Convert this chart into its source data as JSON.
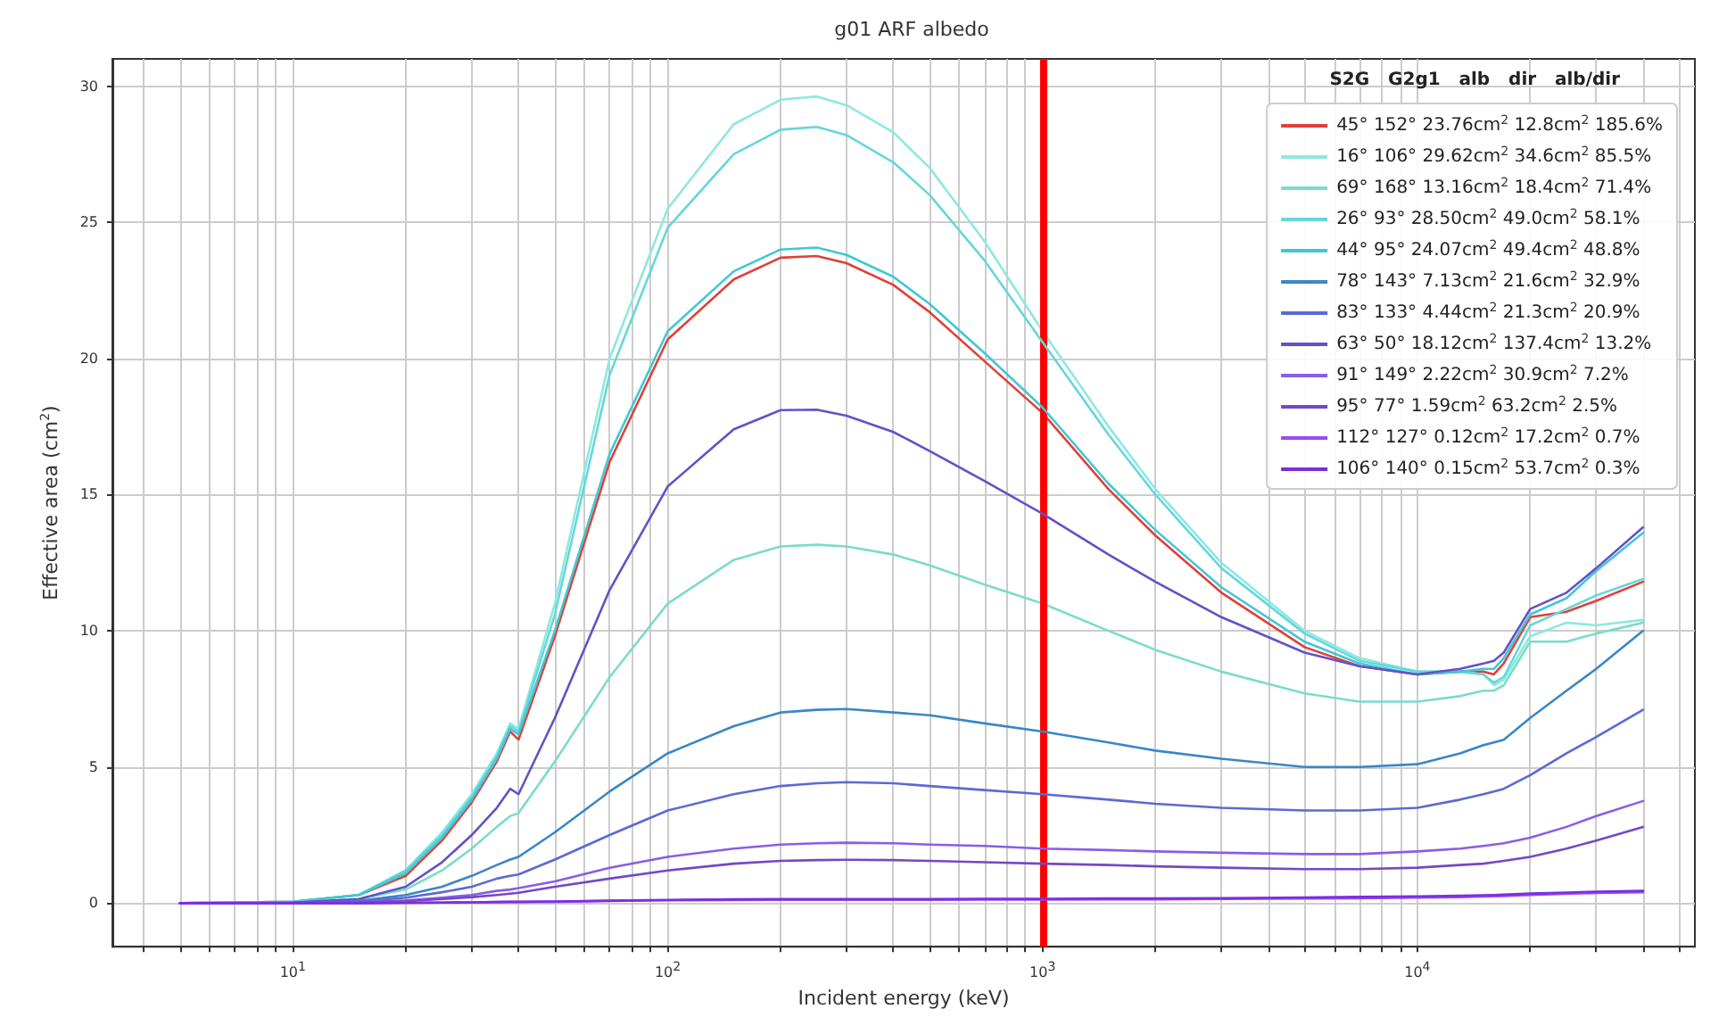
{
  "chart_data": {
    "type": "line",
    "title": "g01 ARF albedo",
    "xlabel": "Incident energy (keV)",
    "ylabel": "Effective area (cm$^{2}$)",
    "legend_title": "S2G   G2g1   alb   dir   alb/dir",
    "legend": "top right",
    "grid": true,
    "marker": "none",
    "line_style": "solid",
    "log": "x",
    "xlim": [
      3.3,
      55000
    ],
    "ylim": [
      -1.6,
      31
    ],
    "xticks": [
      {
        "value": 4,
        "label": null
      },
      {
        "value": 5,
        "label": null
      },
      {
        "value": 6,
        "label": null
      },
      {
        "value": 7,
        "label": null
      },
      {
        "value": 8,
        "label": null
      },
      {
        "value": 9,
        "label": null
      },
      {
        "value": 10,
        "label": "10$^{1}$"
      },
      {
        "value": 20,
        "label": null
      },
      {
        "value": 30,
        "label": null
      },
      {
        "value": 40,
        "label": null
      },
      {
        "value": 50,
        "label": null
      },
      {
        "value": 60,
        "label": null
      },
      {
        "value": 70,
        "label": null
      },
      {
        "value": 80,
        "label": null
      },
      {
        "value": 90,
        "label": null
      },
      {
        "value": 100,
        "label": "10$^{2}$"
      },
      {
        "value": 200,
        "label": null
      },
      {
        "value": 300,
        "label": null
      },
      {
        "value": 400,
        "label": null
      },
      {
        "value": 500,
        "label": null
      },
      {
        "value": 600,
        "label": null
      },
      {
        "value": 700,
        "label": null
      },
      {
        "value": 800,
        "label": null
      },
      {
        "value": 900,
        "label": null
      },
      {
        "value": 1000,
        "label": "10$^{3}$"
      },
      {
        "value": 2000,
        "label": null
      },
      {
        "value": 3000,
        "label": null
      },
      {
        "value": 4000,
        "label": null
      },
      {
        "value": 5000,
        "label": null
      },
      {
        "value": 6000,
        "label": null
      },
      {
        "value": 7000,
        "label": null
      },
      {
        "value": 8000,
        "label": null
      },
      {
        "value": 9000,
        "label": null
      },
      {
        "value": 10000,
        "label": "10$^{4}$"
      },
      {
        "value": 20000,
        "label": null
      },
      {
        "value": 30000,
        "label": null
      },
      {
        "value": 40000,
        "label": null
      },
      {
        "value": 50000,
        "label": null
      }
    ],
    "yticks": [
      0,
      5,
      10,
      15,
      20,
      25,
      30
    ],
    "ref_lines": [
      {
        "axis": "x",
        "value": 1000,
        "color": "#ff0000",
        "line_style": "solid"
      }
    ],
    "x": [
      5,
      10,
      15,
      20,
      25,
      30,
      35,
      38,
      40,
      50,
      70,
      100,
      150,
      200,
      250,
      300,
      400,
      500,
      700,
      1000,
      1500,
      2000,
      3000,
      5000,
      7000,
      10000,
      13000,
      15000,
      16000,
      17000,
      20000,
      25000,
      30000,
      40000
    ],
    "series": [
      {
        "name": "45° 152° 23.76cm$^{2}$ 12.8cm$^{2}$ 185.6%",
        "color": "#e0403a",
        "values": [
          0,
          0.05,
          0.3,
          1.0,
          2.3,
          3.7,
          5.2,
          6.3,
          6.0,
          9.8,
          16.2,
          20.7,
          22.9,
          23.7,
          23.76,
          23.5,
          22.7,
          21.7,
          19.9,
          18.0,
          15.2,
          13.5,
          11.4,
          9.4,
          8.7,
          8.4,
          8.5,
          8.5,
          8.4,
          8.8,
          10.5,
          10.7,
          11.1,
          11.8
        ]
      },
      {
        "name": "16° 106° 29.62cm$^{2}$ 34.6cm$^{2}$ 85.5%",
        "color": "#8ee8e0",
        "values": [
          0,
          0.05,
          0.3,
          1.2,
          2.6,
          4.0,
          5.5,
          6.6,
          6.4,
          11,
          20,
          25.5,
          28.6,
          29.5,
          29.62,
          29.3,
          28.3,
          27,
          24.3,
          21.0,
          17.5,
          15.2,
          12.5,
          10.0,
          9.0,
          8.5,
          8.5,
          8.4,
          8.0,
          8.2,
          9.8,
          10.3,
          10.2,
          10.4
        ]
      },
      {
        "name": "69° 168° 13.16cm$^{2}$ 18.4cm$^{2}$ 71.4%",
        "color": "#7adcc8",
        "values": [
          0,
          0.02,
          0.15,
          0.5,
          1.2,
          2.0,
          2.8,
          3.2,
          3.3,
          5.2,
          8.3,
          11.0,
          12.6,
          13.1,
          13.16,
          13.1,
          12.8,
          12.4,
          11.7,
          11.0,
          10.0,
          9.3,
          8.5,
          7.7,
          7.4,
          7.4,
          7.6,
          7.8,
          7.8,
          8.0,
          9.6,
          9.6,
          9.9,
          10.3
        ]
      },
      {
        "name": "26° 93° 28.50cm$^{2}$ 49.0cm$^{2}$ 58.1%",
        "color": "#66d6dc",
        "values": [
          0,
          0.05,
          0.3,
          1.2,
          2.5,
          3.9,
          5.4,
          6.5,
          6.3,
          10.6,
          19.4,
          24.8,
          27.5,
          28.4,
          28.5,
          28.2,
          27.2,
          26.0,
          23.6,
          20.6,
          17.2,
          15.0,
          12.3,
          9.9,
          8.9,
          8.5,
          8.5,
          8.4,
          8.1,
          8.3,
          10.2,
          10.8,
          11.3,
          11.9
        ]
      },
      {
        "name": "44° 95° 24.07cm$^{2}$ 49.4cm$^{2}$ 48.8%",
        "color": "#40c8d4",
        "values": [
          0,
          0.05,
          0.3,
          1.1,
          2.4,
          3.8,
          5.3,
          6.4,
          6.2,
          10.0,
          16.5,
          21.0,
          23.2,
          24.0,
          24.07,
          23.8,
          23.0,
          22.0,
          20.2,
          18.2,
          15.4,
          13.7,
          11.6,
          9.6,
          8.8,
          8.4,
          8.5,
          8.6,
          8.6,
          9.0,
          10.6,
          11.2,
          12.2,
          13.6
        ]
      },
      {
        "name": "78° 143° 7.13cm$^{2}$ 21.6cm$^{2}$ 32.9%",
        "color": "#3a86c8",
        "values": [
          0,
          0.01,
          0.08,
          0.3,
          0.6,
          1.0,
          1.4,
          1.6,
          1.7,
          2.6,
          4.1,
          5.5,
          6.5,
          7.0,
          7.1,
          7.13,
          7.0,
          6.9,
          6.6,
          6.3,
          5.9,
          5.6,
          5.3,
          5.0,
          5.0,
          5.1,
          5.5,
          5.8,
          5.9,
          6.0,
          6.8,
          7.8,
          8.6,
          10.0
        ]
      },
      {
        "name": "83° 133° 4.44cm$^{2}$ 21.3cm$^{2}$ 20.9%",
        "color": "#5a6ad4",
        "values": [
          0,
          0.01,
          0.05,
          0.2,
          0.4,
          0.6,
          0.9,
          1.0,
          1.05,
          1.6,
          2.5,
          3.4,
          4.0,
          4.3,
          4.4,
          4.44,
          4.4,
          4.3,
          4.15,
          4.0,
          3.8,
          3.65,
          3.5,
          3.4,
          3.4,
          3.5,
          3.8,
          4.0,
          4.1,
          4.2,
          4.7,
          5.5,
          6.1,
          7.1
        ]
      },
      {
        "name": "63° 50° 18.12cm$^{2}$ 137.4cm$^{2}$ 13.2%",
        "color": "#6450c8",
        "values": [
          0,
          0.02,
          0.15,
          0.6,
          1.5,
          2.5,
          3.5,
          4.2,
          4.0,
          6.8,
          11.5,
          15.3,
          17.4,
          18.1,
          18.12,
          17.9,
          17.3,
          16.6,
          15.5,
          14.3,
          12.8,
          11.8,
          10.5,
          9.2,
          8.7,
          8.4,
          8.6,
          8.8,
          8.9,
          9.2,
          10.8,
          11.4,
          12.3,
          13.8
        ]
      },
      {
        "name": "91° 149° 2.22cm$^{2}$ 30.9cm$^{2}$ 7.2%",
        "color": "#8a5ce8",
        "values": [
          0,
          0,
          0.03,
          0.1,
          0.2,
          0.3,
          0.45,
          0.5,
          0.55,
          0.8,
          1.3,
          1.7,
          2.0,
          2.15,
          2.2,
          2.22,
          2.2,
          2.15,
          2.1,
          2.0,
          1.95,
          1.9,
          1.85,
          1.8,
          1.8,
          1.9,
          2.0,
          2.1,
          2.15,
          2.2,
          2.4,
          2.8,
          3.2,
          3.75
        ]
      },
      {
        "name": "95° 77° 1.59cm$^{2}$ 63.2cm$^{2}$ 2.5%",
        "color": "#7448c4",
        "values": [
          0,
          0,
          0.02,
          0.07,
          0.15,
          0.22,
          0.3,
          0.35,
          0.38,
          0.6,
          0.9,
          1.2,
          1.45,
          1.55,
          1.58,
          1.59,
          1.58,
          1.55,
          1.5,
          1.45,
          1.4,
          1.35,
          1.3,
          1.25,
          1.25,
          1.3,
          1.4,
          1.45,
          1.5,
          1.55,
          1.7,
          2.0,
          2.3,
          2.8
        ]
      },
      {
        "name": "112° 127° 0.12cm$^{2}$ 17.2cm$^{2}$ 0.7%",
        "color": "#9a4cf0",
        "values": [
          0,
          0,
          0,
          0.01,
          0.02,
          0.03,
          0.04,
          0.04,
          0.04,
          0.05,
          0.08,
          0.1,
          0.11,
          0.12,
          0.12,
          0.12,
          0.12,
          0.12,
          0.13,
          0.13,
          0.14,
          0.14,
          0.15,
          0.17,
          0.18,
          0.2,
          0.22,
          0.24,
          0.25,
          0.26,
          0.3,
          0.34,
          0.37,
          0.4
        ]
      },
      {
        "name": "106° 140° 0.15cm$^{2}$ 53.7cm$^{2}$ 0.3%",
        "color": "#7a2ee0",
        "values": [
          0,
          0,
          0,
          0.01,
          0.02,
          0.03,
          0.04,
          0.05,
          0.05,
          0.06,
          0.09,
          0.12,
          0.14,
          0.15,
          0.15,
          0.15,
          0.15,
          0.15,
          0.16,
          0.16,
          0.17,
          0.17,
          0.18,
          0.21,
          0.23,
          0.25,
          0.27,
          0.29,
          0.3,
          0.31,
          0.35,
          0.39,
          0.42,
          0.45
        ]
      }
    ]
  }
}
